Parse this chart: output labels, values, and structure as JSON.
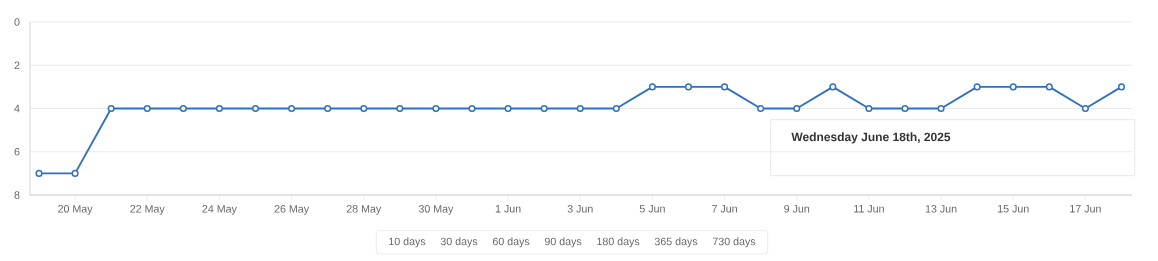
{
  "chart_data": {
    "type": "line",
    "x": [
      "2025-05-19",
      "2025-05-20",
      "2025-05-21",
      "2025-05-22",
      "2025-05-23",
      "2025-05-24",
      "2025-05-25",
      "2025-05-26",
      "2025-05-27",
      "2025-05-28",
      "2025-05-29",
      "2025-05-30",
      "2025-05-31",
      "2025-06-01",
      "2025-06-02",
      "2025-06-03",
      "2025-06-04",
      "2025-06-05",
      "2025-06-06",
      "2025-06-07",
      "2025-06-08",
      "2025-06-09",
      "2025-06-10",
      "2025-06-11",
      "2025-06-12",
      "2025-06-13",
      "2025-06-14",
      "2025-06-15",
      "2025-06-16",
      "2025-06-17",
      "2025-06-18"
    ],
    "series": [
      {
        "color": "#2f6fc4",
        "values": [
          7,
          7,
          4,
          4,
          4,
          4,
          4,
          4,
          4,
          4,
          4,
          4,
          4,
          4,
          4,
          4,
          4,
          3,
          3,
          3,
          4,
          4,
          3,
          4,
          4,
          4,
          3,
          3,
          3,
          4,
          3
        ]
      }
    ],
    "xlim": [
      "2025-05-18T18:00",
      "2025-06-18T07:00"
    ],
    "xticks": [
      {
        "value": "2025-05-20",
        "label": "20 May"
      },
      {
        "value": "2025-05-22",
        "label": "22 May"
      },
      {
        "value": "2025-05-24",
        "label": "24 May"
      },
      {
        "value": "2025-05-26",
        "label": "26 May"
      },
      {
        "value": "2025-05-28",
        "label": "28 May"
      },
      {
        "value": "2025-05-30",
        "label": "30 May"
      },
      {
        "value": "2025-06-01",
        "label": "1 Jun"
      },
      {
        "value": "2025-06-03",
        "label": "3 Jun"
      },
      {
        "value": "2025-06-05",
        "label": "5 Jun"
      },
      {
        "value": "2025-06-07",
        "label": "7 Jun"
      },
      {
        "value": "2025-06-09",
        "label": "9 Jun"
      },
      {
        "value": "2025-06-11",
        "label": "11 Jun"
      },
      {
        "value": "2025-06-13",
        "label": "13 Jun"
      },
      {
        "value": "2025-06-15",
        "label": "15 Jun"
      },
      {
        "value": "2025-06-17",
        "label": "17 Jun"
      }
    ],
    "ylim": [
      8,
      0
    ],
    "yticks": [
      0,
      2,
      4,
      6,
      8
    ],
    "grid": "y",
    "marker": "circle",
    "annotations": [
      "Wednesday June 18th, 2025",
      "10 days",
      "30 days",
      "60 days",
      "90 days",
      "180 days",
      "365 days",
      "730 days"
    ]
  }
}
